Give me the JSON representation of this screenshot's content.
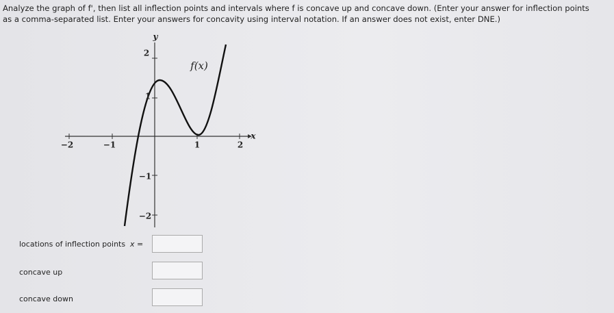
{
  "question": {
    "text": "Analyze the graph of f', then list all inflection points and intervals where f is concave up and concave down. (Enter your answer for inflection points as a comma-separated list. Enter your answers for concavity using interval notation. If an answer does not exist, enter DNE.)"
  },
  "graph": {
    "x_label": "x",
    "y_label": "y",
    "curve_label": "f(x)",
    "x_tick_labels": [
      "−2",
      "−1",
      "1",
      "2"
    ],
    "y_tick_labels": [
      "2",
      "1",
      "−1",
      "−2"
    ]
  },
  "answers": {
    "inflection_label": "locations of inflection points",
    "inflection_prefix": "x =",
    "concave_up_label": "concave up",
    "concave_down_label": "concave down"
  }
}
